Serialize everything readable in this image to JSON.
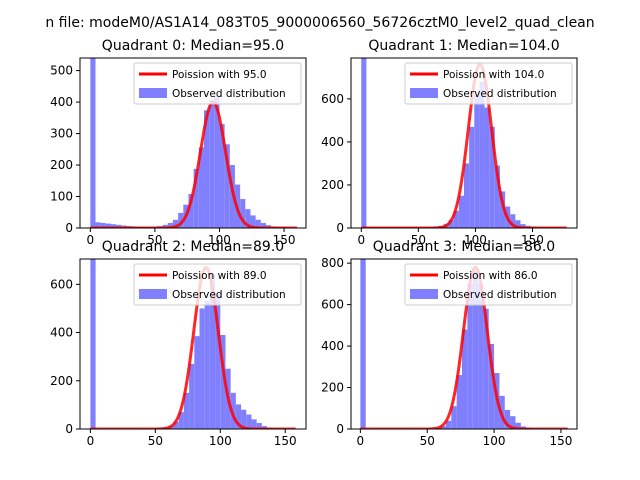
{
  "figure_title": "n file: modeM0/AS1A14_083T05_9000006560_56726cztM0_level2_quad_clean",
  "legend_labels": {
    "fit": "Poission with {m}",
    "observed": "Observed distribution"
  },
  "colors": {
    "fit_line": "#ff0000",
    "histogram": "#8080ff",
    "axes": "#000000",
    "background": "#ffffff"
  },
  "chart_data": [
    {
      "type": "bar",
      "title": "Quadrant 0: Median=95.0",
      "median": 95.0,
      "xlim": [
        -8,
        167
      ],
      "ylim": [
        0,
        540
      ],
      "xticks": [
        0,
        50,
        100,
        150
      ],
      "yticks": [
        0,
        100,
        200,
        300,
        400,
        500
      ],
      "bin_width": 4,
      "bins": [
        [
          0,
          540
        ],
        [
          4,
          18
        ],
        [
          8,
          16
        ],
        [
          12,
          14
        ],
        [
          16,
          12
        ],
        [
          20,
          10
        ],
        [
          24,
          8
        ],
        [
          28,
          6
        ],
        [
          32,
          5
        ],
        [
          36,
          4
        ],
        [
          40,
          3
        ],
        [
          44,
          3
        ],
        [
          48,
          4
        ],
        [
          52,
          6
        ],
        [
          56,
          10
        ],
        [
          60,
          16
        ],
        [
          64,
          26
        ],
        [
          68,
          48
        ],
        [
          72,
          74
        ],
        [
          76,
          108
        ],
        [
          80,
          188
        ],
        [
          84,
          256
        ],
        [
          88,
          374
        ],
        [
          92,
          406
        ],
        [
          96,
          418
        ],
        [
          100,
          330
        ],
        [
          104,
          266
        ],
        [
          108,
          200
        ],
        [
          112,
          138
        ],
        [
          116,
          92
        ],
        [
          120,
          60
        ],
        [
          124,
          40
        ],
        [
          128,
          26
        ],
        [
          132,
          16
        ],
        [
          136,
          9
        ],
        [
          140,
          5
        ],
        [
          144,
          3
        ],
        [
          148,
          2
        ],
        [
          152,
          1
        ],
        [
          156,
          1
        ]
      ],
      "fit": {
        "mean": 95.0,
        "peak": 400,
        "sigma": 9.7,
        "range": [
          0,
          160
        ]
      }
    },
    {
      "type": "bar",
      "title": "Quadrant 1: Median=104.0",
      "median": 104.0,
      "xlim": [
        -9,
        189
      ],
      "ylim": [
        0,
        790
      ],
      "xticks": [
        0,
        50,
        100,
        150
      ],
      "yticks": [
        0,
        200,
        400,
        600
      ],
      "bin_width": 4.5,
      "bins": [
        [
          0,
          790
        ],
        [
          4.5,
          3
        ],
        [
          9,
          2
        ],
        [
          13.5,
          2
        ],
        [
          18,
          1
        ],
        [
          22.5,
          1
        ],
        [
          27,
          1
        ],
        [
          31.5,
          1
        ],
        [
          36,
          1
        ],
        [
          40.5,
          1
        ],
        [
          45,
          1
        ],
        [
          49.5,
          1
        ],
        [
          54,
          2
        ],
        [
          58.5,
          3
        ],
        [
          63,
          6
        ],
        [
          67.5,
          10
        ],
        [
          72,
          18
        ],
        [
          76.5,
          38
        ],
        [
          81,
          80
        ],
        [
          85.5,
          150
        ],
        [
          90,
          300
        ],
        [
          94.5,
          470
        ],
        [
          99,
          620
        ],
        [
          103.5,
          680
        ],
        [
          108,
          560
        ],
        [
          112.5,
          470
        ],
        [
          117,
          290
        ],
        [
          121.5,
          170
        ],
        [
          126,
          100
        ],
        [
          130.5,
          64
        ],
        [
          135,
          36
        ],
        [
          139.5,
          18
        ],
        [
          144,
          10
        ],
        [
          148.5,
          6
        ],
        [
          153,
          3
        ],
        [
          157.5,
          2
        ],
        [
          162,
          1
        ],
        [
          166.5,
          1
        ],
        [
          171,
          1
        ],
        [
          175.5,
          1
        ]
      ],
      "fit": {
        "mean": 104.0,
        "peak": 760,
        "sigma": 10.2,
        "range": [
          0,
          180
        ]
      }
    },
    {
      "type": "bar",
      "title": "Quadrant 2: Median=89.0",
      "median": 89.0,
      "xlim": [
        -8,
        166
      ],
      "ylim": [
        0,
        705
      ],
      "xticks": [
        0,
        50,
        100,
        150
      ],
      "yticks": [
        0,
        200,
        400,
        600
      ],
      "bin_width": 4,
      "bins": [
        [
          0,
          705
        ],
        [
          4,
          2
        ],
        [
          8,
          1
        ],
        [
          12,
          1
        ],
        [
          16,
          1
        ],
        [
          20,
          1
        ],
        [
          24,
          1
        ],
        [
          28,
          1
        ],
        [
          32,
          1
        ],
        [
          36,
          1
        ],
        [
          40,
          1
        ],
        [
          44,
          1
        ],
        [
          48,
          2
        ],
        [
          52,
          3
        ],
        [
          56,
          6
        ],
        [
          60,
          12
        ],
        [
          64,
          30
        ],
        [
          68,
          70
        ],
        [
          72,
          150
        ],
        [
          76,
          270
        ],
        [
          80,
          385
        ],
        [
          84,
          500
        ],
        [
          88,
          530
        ],
        [
          92,
          640
        ],
        [
          96,
          560
        ],
        [
          100,
          390
        ],
        [
          104,
          250
        ],
        [
          108,
          150
        ],
        [
          112,
          102
        ],
        [
          116,
          80
        ],
        [
          120,
          60
        ],
        [
          124,
          40
        ],
        [
          128,
          25
        ],
        [
          132,
          12
        ],
        [
          136,
          6
        ],
        [
          140,
          3
        ],
        [
          144,
          2
        ],
        [
          148,
          1
        ],
        [
          152,
          1
        ],
        [
          156,
          1
        ]
      ],
      "fit": {
        "mean": 89.0,
        "peak": 670,
        "sigma": 9.4,
        "range": [
          0,
          158
        ]
      }
    },
    {
      "type": "bar",
      "title": "Quadrant 3: Median=86.0",
      "median": 86.0,
      "xlim": [
        -7,
        162
      ],
      "ylim": [
        0,
        820
      ],
      "xticks": [
        0,
        50,
        100,
        150
      ],
      "yticks": [
        0,
        200,
        400,
        600,
        800
      ],
      "bin_width": 4,
      "bins": [
        [
          0,
          820
        ],
        [
          4,
          2
        ],
        [
          8,
          1
        ],
        [
          12,
          1
        ],
        [
          16,
          1
        ],
        [
          20,
          1
        ],
        [
          24,
          1
        ],
        [
          28,
          1
        ],
        [
          32,
          1
        ],
        [
          36,
          1
        ],
        [
          40,
          1
        ],
        [
          44,
          1
        ],
        [
          48,
          2
        ],
        [
          52,
          3
        ],
        [
          56,
          6
        ],
        [
          60,
          14
        ],
        [
          64,
          40
        ],
        [
          68,
          110
        ],
        [
          72,
          260
        ],
        [
          76,
          480
        ],
        [
          80,
          700
        ],
        [
          84,
          760
        ],
        [
          88,
          700
        ],
        [
          92,
          580
        ],
        [
          96,
          410
        ],
        [
          100,
          270
        ],
        [
          104,
          160
        ],
        [
          108,
          92
        ],
        [
          112,
          62
        ],
        [
          116,
          30
        ],
        [
          120,
          12
        ],
        [
          124,
          6
        ],
        [
          128,
          3
        ],
        [
          132,
          2
        ],
        [
          136,
          1
        ],
        [
          140,
          1
        ],
        [
          144,
          1
        ],
        [
          148,
          1
        ],
        [
          152,
          1
        ]
      ],
      "fit": {
        "mean": 86.0,
        "peak": 780,
        "sigma": 8.9,
        "range": [
          0,
          155
        ]
      }
    }
  ]
}
